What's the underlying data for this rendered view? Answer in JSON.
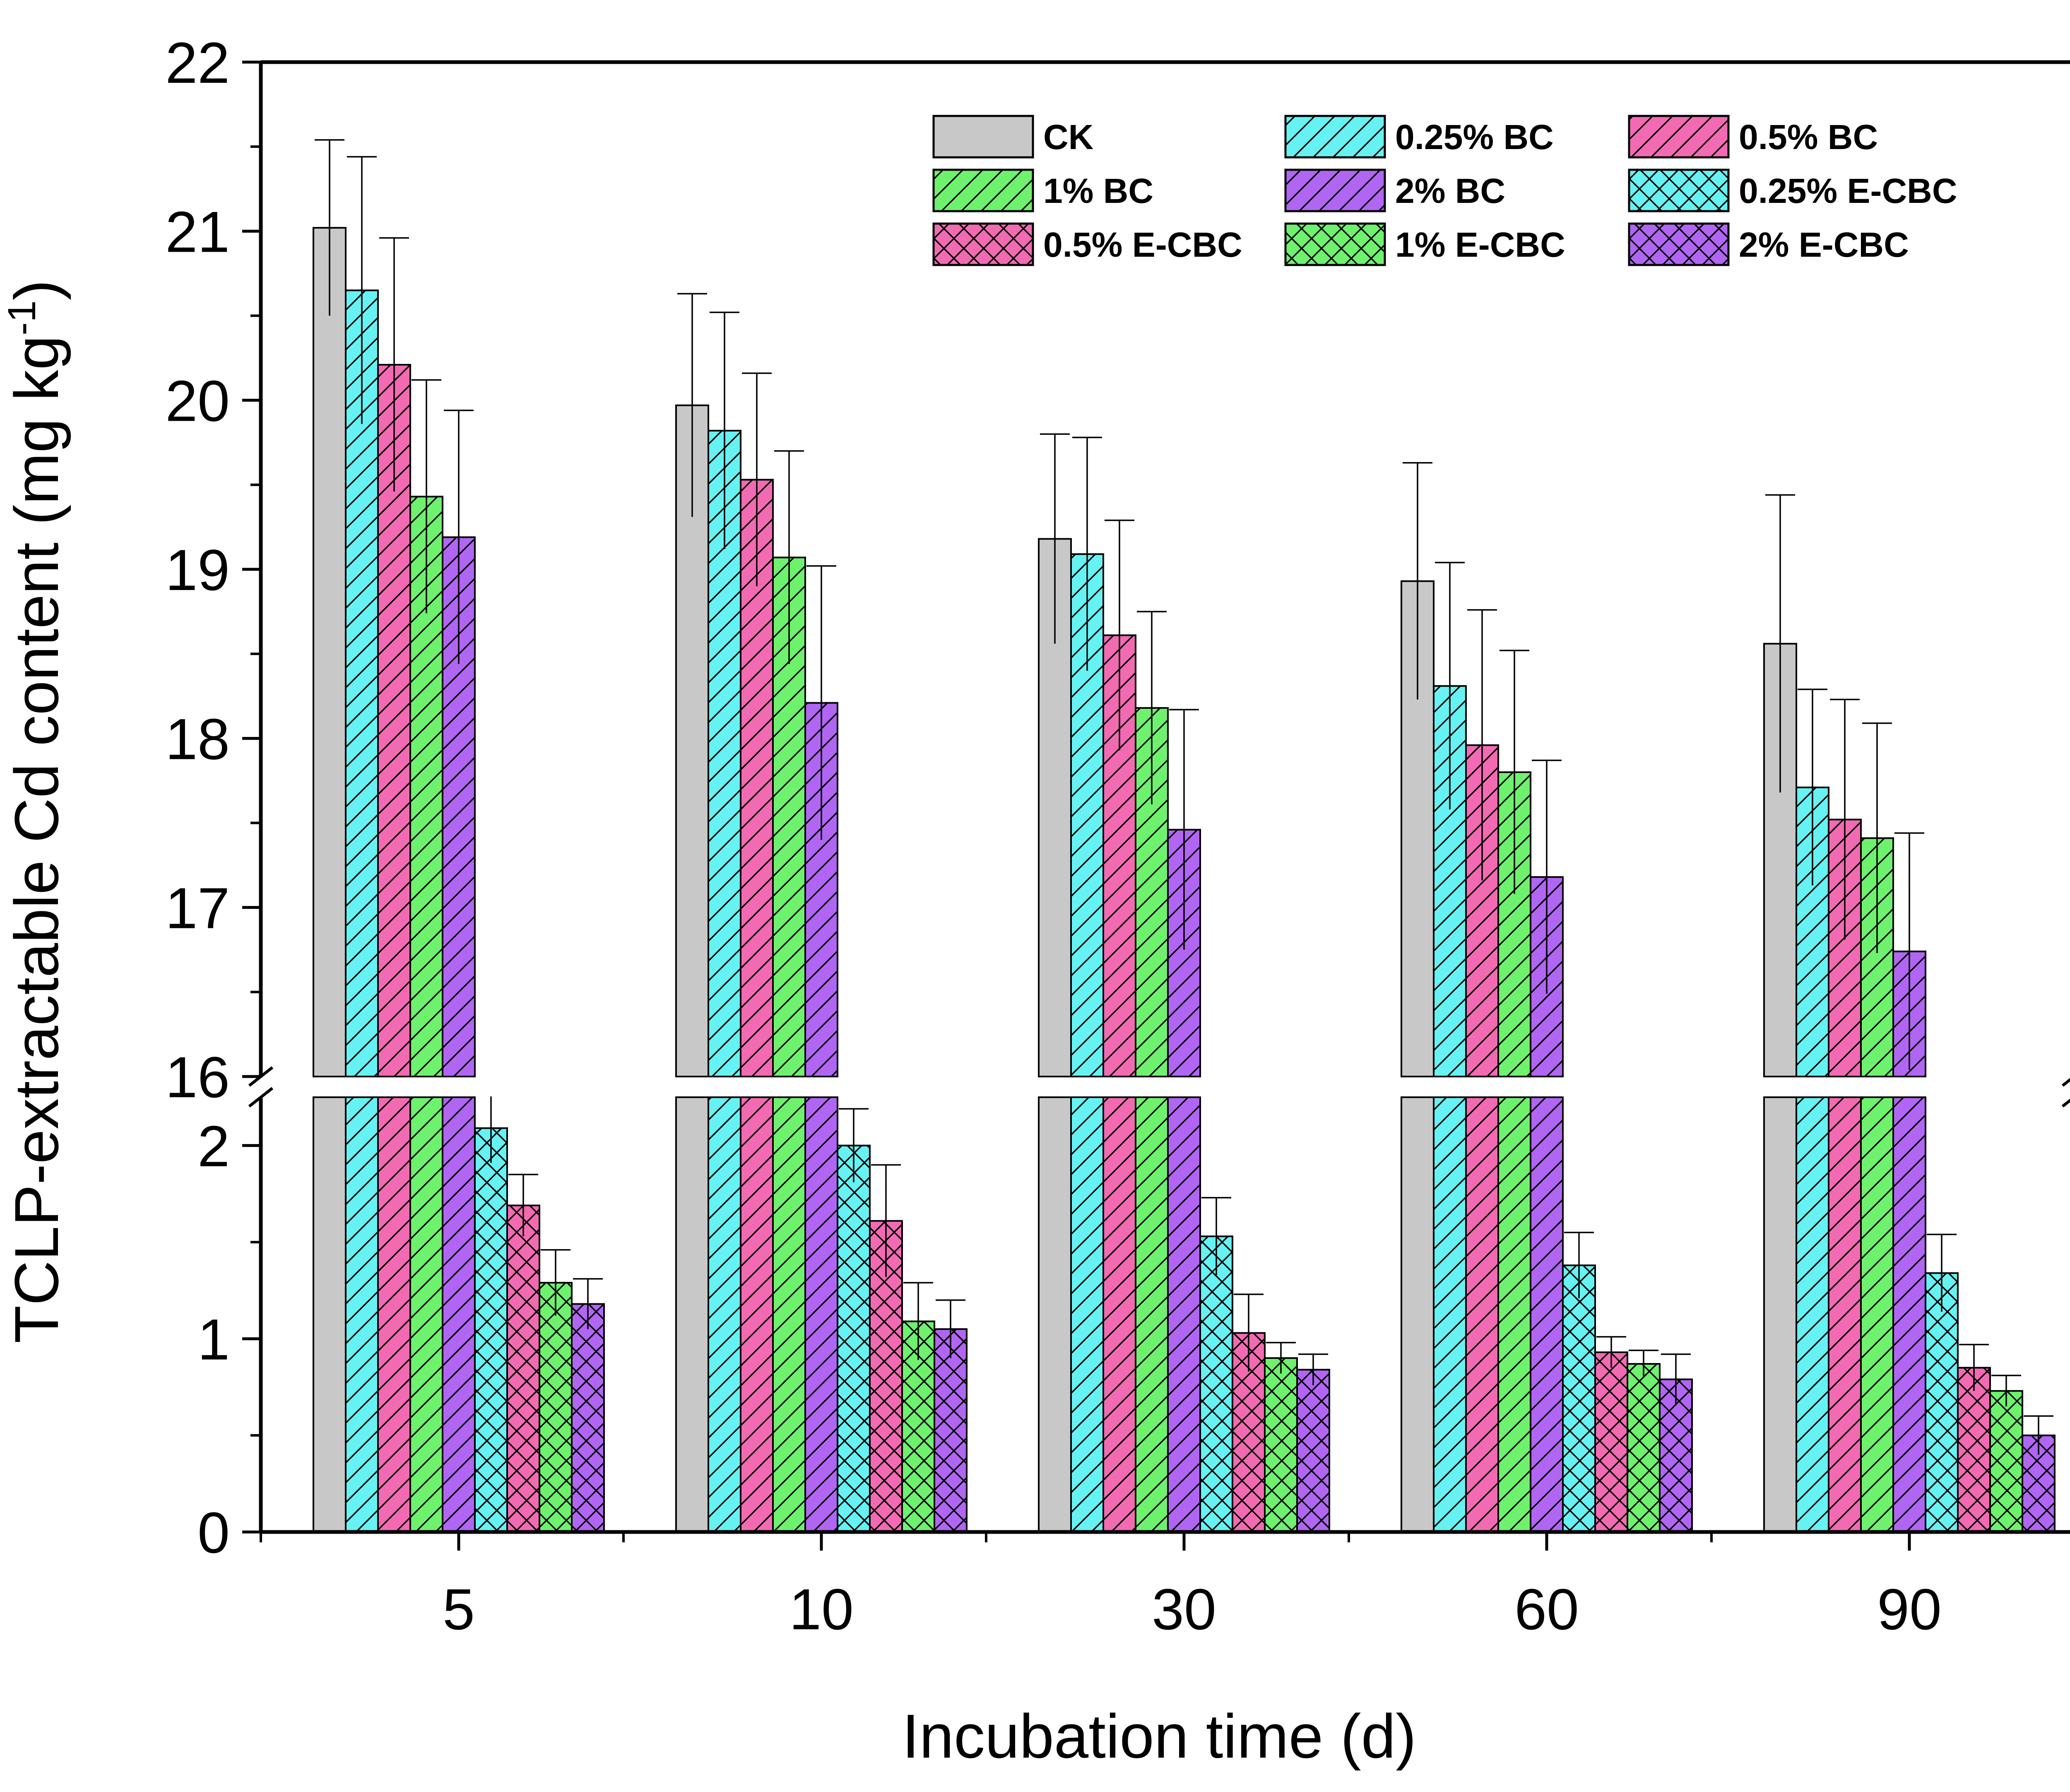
{
  "chart_data": {
    "type": "bar",
    "title": "",
    "xlabel": "Incubation time (d)",
    "ylabel_main": "TCLP-extractable Cd content (mg kg",
    "ylabel_sup": "-1",
    "ylabel_close": ")",
    "categories": [
      "5",
      "10",
      "30",
      "60",
      "90"
    ],
    "y_broken_axis": {
      "lower_range": [
        0,
        2.25
      ],
      "upper_range": [
        16,
        22
      ],
      "lower_ticks": [
        "0",
        "1",
        "2"
      ],
      "upper_ticks": [
        "16",
        "17",
        "18",
        "19",
        "20",
        "21",
        "22"
      ]
    },
    "legend_position": "top-right",
    "series": [
      {
        "name": "CK",
        "color": "#c8c8c8",
        "pattern": "none",
        "values": [
          21.02,
          19.97,
          19.18,
          18.93,
          18.56
        ],
        "errors": [
          0.52,
          0.66,
          0.62,
          0.7,
          0.88
        ]
      },
      {
        "name": "0.25% BC",
        "color": "#66f2f2",
        "pattern": "hatch",
        "values": [
          20.65,
          19.82,
          19.09,
          18.31,
          17.71
        ],
        "errors": [
          0.79,
          0.7,
          0.69,
          0.73,
          0.58
        ]
      },
      {
        "name": "0.5% BC",
        "color": "#f26bb2",
        "pattern": "hatch",
        "values": [
          20.21,
          19.53,
          18.61,
          17.96,
          17.52
        ],
        "errors": [
          0.75,
          0.63,
          0.68,
          0.8,
          0.71
        ]
      },
      {
        "name": "1% BC",
        "color": "#6ef26e",
        "pattern": "hatch",
        "values": [
          19.43,
          19.07,
          18.18,
          17.8,
          17.41
        ],
        "errors": [
          0.69,
          0.63,
          0.57,
          0.72,
          0.68
        ]
      },
      {
        "name": "2% BC",
        "color": "#b066f2",
        "pattern": "hatch",
        "values": [
          19.19,
          18.21,
          17.46,
          17.18,
          16.74
        ],
        "errors": [
          0.75,
          0.81,
          0.71,
          0.69,
          0.7
        ]
      },
      {
        "name": "0.25% E-CBC",
        "color": "#66f2f2",
        "pattern": "cross",
        "values": [
          2.09,
          2.0,
          1.53,
          1.38,
          1.34
        ],
        "errors": [
          0.18,
          0.19,
          0.2,
          0.17,
          0.2
        ]
      },
      {
        "name": "0.5% E-CBC",
        "color": "#f26bb2",
        "pattern": "cross",
        "values": [
          1.69,
          1.61,
          1.03,
          0.93,
          0.85
        ],
        "errors": [
          0.16,
          0.29,
          0.2,
          0.08,
          0.12
        ]
      },
      {
        "name": "1% E-CBC",
        "color": "#6ef26e",
        "pattern": "cross",
        "values": [
          1.29,
          1.09,
          0.9,
          0.87,
          0.73
        ],
        "errors": [
          0.17,
          0.2,
          0.08,
          0.07,
          0.08
        ]
      },
      {
        "name": "2% E-CBC",
        "color": "#b066f2",
        "pattern": "cross",
        "values": [
          1.18,
          1.05,
          0.84,
          0.79,
          0.5
        ],
        "errors": [
          0.13,
          0.15,
          0.08,
          0.13,
          0.1
        ]
      }
    ]
  }
}
